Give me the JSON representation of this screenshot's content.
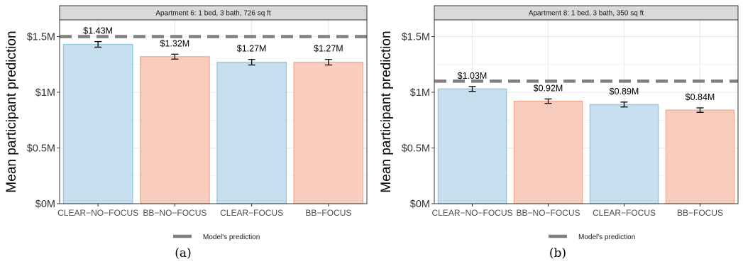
{
  "colors": {
    "clear_fill": "#c6dfee",
    "clear_stroke": "#8cc4e0",
    "bb_fill": "#f8cdbd",
    "bb_stroke": "#f0a88e",
    "model_line": "#808080",
    "grid": "#ebebeb"
  },
  "legend": {
    "label": "Model's prediction"
  },
  "chart_data": [
    {
      "type": "bar",
      "panel_caption": "(a)",
      "title": "Apartment 6: 1 bed, 3 bath, 726 sq ft",
      "xlabel": "",
      "ylabel": "Mean participant prediction",
      "categories": [
        "CLEAR−NO−FOCUS",
        "BB−NO−FOCUS",
        "CLEAR−FOCUS",
        "BB−FOCUS"
      ],
      "groups": [
        "CLEAR",
        "BB",
        "CLEAR",
        "BB"
      ],
      "values": [
        1.43,
        1.32,
        1.27,
        1.27
      ],
      "errors": [
        0.025,
        0.022,
        0.025,
        0.025
      ],
      "value_labels": [
        "$1.43M",
        "$1.32M",
        "$1.27M",
        "$1.27M"
      ],
      "model_prediction": 1.5,
      "ylim": [
        0,
        1.65
      ],
      "yticks": [
        0,
        0.5,
        1,
        1.5
      ],
      "ytick_labels": [
        "$0M",
        "$0.5M",
        "$1M",
        "$1.5M"
      ],
      "grid": true
    },
    {
      "type": "bar",
      "panel_caption": "(b)",
      "title": "Apartment 8: 1 bed, 3 bath, 350 sq ft",
      "xlabel": "",
      "ylabel": "Mean participant prediction",
      "categories": [
        "CLEAR−NO−FOCUS",
        "BB−NO−FOCUS",
        "CLEAR−FOCUS",
        "BB−FOCUS"
      ],
      "groups": [
        "CLEAR",
        "BB",
        "CLEAR",
        "BB"
      ],
      "values": [
        1.03,
        0.92,
        0.89,
        0.84
      ],
      "errors": [
        0.022,
        0.02,
        0.022,
        0.02
      ],
      "value_labels": [
        "$1.03M",
        "$0.92M",
        "$0.89M",
        "$0.84M"
      ],
      "model_prediction": 1.1,
      "ylim": [
        0,
        1.65
      ],
      "yticks": [
        0,
        0.5,
        1,
        1.5
      ],
      "ytick_labels": [
        "$0M",
        "$0.5M",
        "$1M",
        "$1.5M"
      ],
      "grid": true
    }
  ]
}
